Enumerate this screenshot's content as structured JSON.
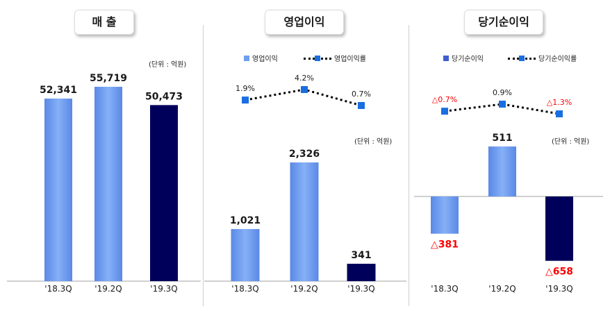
{
  "titles": {
    "revenue": "매 출",
    "operating": "영업이익",
    "net": "당기순이익"
  },
  "unit_label": "(단위 : 억원)",
  "legends": {
    "operating": {
      "bar": "영업이익",
      "line": "영업이익률"
    },
    "net": {
      "bar": "당기순이익",
      "line": "당기순이익률"
    }
  },
  "colors": {
    "light_bar": "#6f9df0",
    "dark_bar": "#00005a",
    "marker": "#1a6ee0",
    "negative_text": "#ff0000"
  },
  "chart_data": [
    {
      "type": "bar",
      "title": "매 출",
      "categories": [
        "'18.3Q",
        "'19.2Q",
        "'19.3Q"
      ],
      "values": [
        52341,
        55719,
        50473
      ],
      "value_labels": [
        "52,341",
        "55,719",
        "50,473"
      ],
      "unit": "(단위 : 억원)",
      "ylim": [
        0,
        60000
      ],
      "grid": false
    },
    {
      "type": "bar",
      "title": "영업이익",
      "categories": [
        "'18.3Q",
        "'19.2Q",
        "'19.3Q"
      ],
      "values": [
        1021,
        2326,
        341
      ],
      "value_labels": [
        "1,021",
        "2,326",
        "341"
      ],
      "unit": "(단위 : 억원)",
      "ylim": [
        0,
        2800
      ],
      "legend": "top-left",
      "series": [
        {
          "name": "영업이익",
          "type": "bar",
          "values": [
            1021,
            2326,
            341
          ]
        },
        {
          "name": "영업이익률",
          "type": "line",
          "values": [
            1.9,
            4.2,
            0.7
          ],
          "value_labels": [
            "1.9%",
            "4.2%",
            "0.7%"
          ]
        }
      ]
    },
    {
      "type": "bar",
      "title": "당기순이익",
      "categories": [
        "'18.3Q",
        "'19.2Q",
        "'19.3Q"
      ],
      "values": [
        -381,
        511,
        -658
      ],
      "value_labels": [
        "△381",
        "511",
        "△658"
      ],
      "unit": "(단위 : 억원)",
      "ylim": [
        -700,
        500
      ],
      "legend": "top-left",
      "series": [
        {
          "name": "당기순이익",
          "type": "bar",
          "values": [
            -381,
            511,
            -658
          ]
        },
        {
          "name": "당기순이익률",
          "type": "line",
          "values": [
            -0.7,
            0.9,
            -1.3
          ],
          "value_labels": [
            "△0.7%",
            "0.9%",
            "△1.3%"
          ]
        }
      ]
    }
  ]
}
